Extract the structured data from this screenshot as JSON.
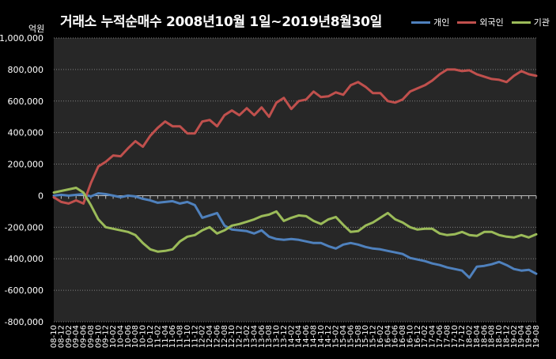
{
  "chart_data": {
    "type": "line",
    "title": "거래소 누적순매수 2008년10월 1일~2019년8월30일",
    "ylabel": "억원",
    "ylim": [
      -800000,
      1000000
    ],
    "yticks": [
      1000000,
      800000,
      600000,
      400000,
      200000,
      0,
      -200000,
      -400000,
      -600000,
      -800000
    ],
    "ytick_labels": [
      "1,000,000",
      "800,000",
      "600,000",
      "400,000",
      "200,000",
      "0",
      "-200,000",
      "-400,000",
      "-600,000",
      "-800,000"
    ],
    "grid": true,
    "legend_position": "top-right",
    "categories": [
      "08-10",
      "08-12",
      "09-02",
      "09-04",
      "09-06",
      "09-08",
      "09-10",
      "09-12",
      "10-02",
      "10-04",
      "10-06",
      "10-08",
      "10-10",
      "10-12",
      "11-02",
      "11-04",
      "11-06",
      "11-08",
      "11-10",
      "11-12",
      "12-02",
      "12-04",
      "12-06",
      "12-08",
      "12-10",
      "12-12",
      "13-02",
      "13-04",
      "13-06",
      "13-08",
      "13-10",
      "13-12",
      "14-02",
      "14-04",
      "14-06",
      "14-08",
      "14-10",
      "14-12",
      "15-02",
      "15-04",
      "15-06",
      "15-08",
      "15-10",
      "15-12",
      "16-02",
      "16-04",
      "16-06",
      "16-08",
      "16-10",
      "16-12",
      "17-02",
      "17-04",
      "17-06",
      "17-08",
      "17-10",
      "17-12",
      "18-02",
      "18-04",
      "18-06",
      "18-08",
      "18-10",
      "18-12",
      "19-02",
      "19-04",
      "19-06",
      "19-08"
    ],
    "series": [
      {
        "name": "개인",
        "color": "#4f81bd",
        "values": [
          0,
          5000,
          0,
          5000,
          10000,
          -5000,
          15000,
          10000,
          0,
          -10000,
          0,
          -5000,
          -20000,
          -30000,
          -45000,
          -40000,
          -35000,
          -50000,
          -40000,
          -60000,
          -140000,
          -125000,
          -110000,
          -190000,
          -215000,
          -220000,
          -225000,
          -240000,
          -220000,
          -260000,
          -275000,
          -280000,
          -275000,
          -280000,
          -290000,
          -300000,
          -300000,
          -320000,
          -335000,
          -310000,
          -300000,
          -310000,
          -325000,
          -335000,
          -340000,
          -350000,
          -360000,
          -370000,
          -395000,
          -405000,
          -415000,
          -430000,
          -440000,
          -455000,
          -465000,
          -475000,
          -520000,
          -450000,
          -445000,
          -435000,
          -420000,
          -440000,
          -465000,
          -475000,
          -470000,
          -495000
        ]
      },
      {
        "name": "외국인",
        "color": "#c0504d",
        "values": [
          -10000,
          -40000,
          -50000,
          -30000,
          -50000,
          80000,
          185000,
          215000,
          255000,
          250000,
          300000,
          345000,
          310000,
          380000,
          430000,
          470000,
          440000,
          440000,
          395000,
          395000,
          470000,
          480000,
          440000,
          510000,
          540000,
          510000,
          555000,
          510000,
          560000,
          500000,
          590000,
          620000,
          550000,
          600000,
          610000,
          660000,
          625000,
          630000,
          655000,
          640000,
          700000,
          720000,
          690000,
          650000,
          650000,
          600000,
          590000,
          610000,
          660000,
          680000,
          700000,
          730000,
          770000,
          800000,
          800000,
          790000,
          795000,
          770000,
          755000,
          740000,
          735000,
          720000,
          760000,
          790000,
          770000,
          760000
        ]
      },
      {
        "name": "기관",
        "color": "#9bbb59",
        "values": [
          20000,
          30000,
          40000,
          50000,
          20000,
          -60000,
          -150000,
          -200000,
          -210000,
          -220000,
          -230000,
          -250000,
          -300000,
          -340000,
          -355000,
          -350000,
          -340000,
          -290000,
          -260000,
          -250000,
          -220000,
          -200000,
          -240000,
          -220000,
          -190000,
          -180000,
          -165000,
          -150000,
          -130000,
          -120000,
          -100000,
          -160000,
          -140000,
          -125000,
          -130000,
          -160000,
          -180000,
          -150000,
          -135000,
          -185000,
          -230000,
          -225000,
          -190000,
          -170000,
          -140000,
          -110000,
          -150000,
          -170000,
          -200000,
          -215000,
          -210000,
          -210000,
          -240000,
          -250000,
          -245000,
          -230000,
          -250000,
          -255000,
          -230000,
          -230000,
          -250000,
          -260000,
          -265000,
          -250000,
          -265000,
          -245000
        ]
      }
    ]
  }
}
